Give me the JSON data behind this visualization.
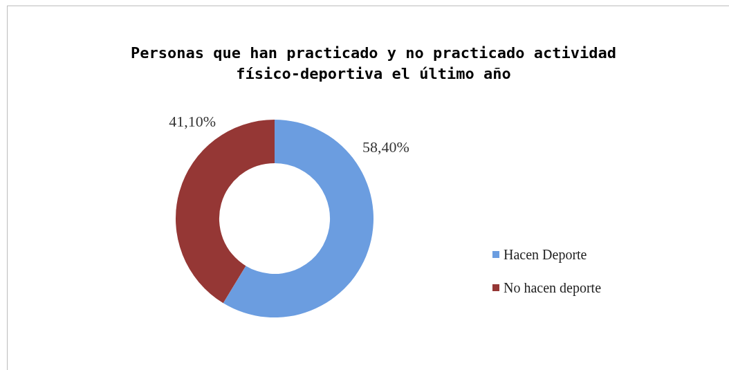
{
  "chart_data": {
    "type": "donut",
    "title": "Personas que han practicado y no practicado actividad físico-deportiva el último año",
    "categories": [
      "Hacen Deporte",
      "No hacen deporte"
    ],
    "values": [
      58.4,
      41.1
    ],
    "value_labels": [
      "58,40%",
      "41,10%"
    ],
    "colors": [
      "#6b9de0",
      "#953735"
    ],
    "legend": "right"
  }
}
